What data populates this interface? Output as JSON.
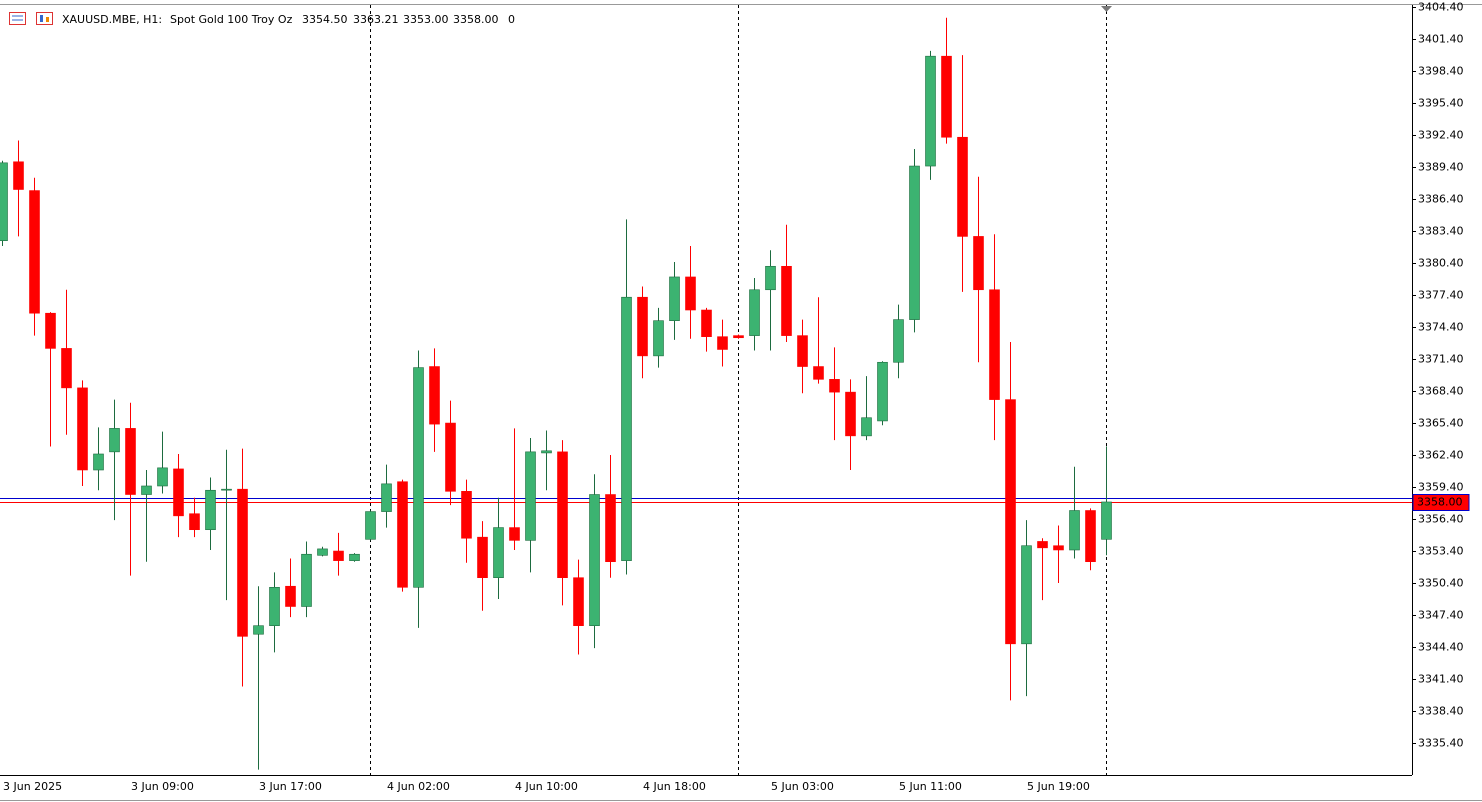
{
  "chart_data": {
    "type": "candlestick",
    "title": "XAUUSD.MBE, H1:",
    "subtitle": "Spot Gold 100 Troy Oz",
    "ohlc_labels": [
      "3354.50",
      "3363.21",
      "3353.00",
      "3358.00"
    ],
    "tick_volume": 0,
    "categories": [
      "3 Jun 2025",
      null,
      null,
      null,
      null,
      null,
      null,
      null,
      "3 Jun 09:00",
      null,
      null,
      null,
      null,
      null,
      null,
      null,
      "3 Jun 17:00",
      null,
      null,
      null,
      null,
      null,
      null,
      null,
      "4 Jun 02:00",
      null,
      null,
      null,
      null,
      null,
      null,
      null,
      "4 Jun 10:00",
      null,
      null,
      null,
      null,
      null,
      null,
      null,
      "4 Jun 18:00",
      null,
      null,
      null,
      null,
      null,
      null,
      null,
      "5 Jun 03:00",
      null,
      null,
      null,
      null,
      null,
      null,
      null,
      "5 Jun 11:00",
      null,
      null,
      null,
      null,
      null,
      null,
      null,
      "5 Jun 19:00",
      null,
      null,
      null,
      null,
      null
    ],
    "open": [
      3382.5,
      3389.9,
      3387.2,
      3375.7,
      3372.4,
      3368.7,
      3361.0,
      3362.7,
      3364.9,
      3358.7,
      3359.5,
      3361.1,
      3356.9,
      3355.4,
      3359.2,
      3359.2,
      3345.6,
      3346.4,
      3350.1,
      3348.2,
      3353.0,
      3353.4,
      3352.5,
      3354.5,
      3357.1,
      3359.9,
      3350.0,
      3370.7,
      3365.4,
      3359.0,
      3354.7,
      3350.9,
      3355.6,
      3354.4,
      3362.6,
      3362.7,
      3350.9,
      3346.4,
      3358.7,
      3352.5,
      3377.2,
      3371.7,
      3375.0,
      3379.1,
      3376.0,
      3373.5,
      3373.6,
      3373.6,
      3377.9,
      3380.1,
      3373.6,
      3370.7,
      3369.5,
      3368.3,
      3364.2,
      3365.6,
      3371.1,
      3375.1,
      3389.5,
      3399.8,
      3392.2,
      3382.9,
      3377.9,
      3367.6,
      3344.7,
      3354.3,
      3353.9,
      3353.5,
      3357.2,
      3354.5
    ],
    "high": [
      3390.0,
      3391.9,
      3388.4,
      3375.8,
      3377.9,
      3369.4,
      3365.0,
      3367.6,
      3367.3,
      3361.0,
      3364.6,
      3362.5,
      3358.4,
      3360.3,
      3362.9,
      3363.0,
      3350.1,
      3351.4,
      3352.7,
      3354.3,
      3353.8,
      3355.1,
      3353.2,
      3357.2,
      3361.5,
      3360.1,
      3372.2,
      3372.4,
      3367.5,
      3360.1,
      3356.2,
      3358.4,
      3364.9,
      3364.0,
      3364.7,
      3363.8,
      3352.6,
      3360.6,
      3362.4,
      3384.5,
      3378.2,
      3376.2,
      3380.5,
      3382.0,
      3376.2,
      3375.1,
      3373.7,
      3379.0,
      3381.6,
      3384.0,
      3375.1,
      3377.2,
      3372.5,
      3369.5,
      3369.8,
      3371.2,
      3376.5,
      3391.1,
      3400.3,
      3403.4,
      3399.9,
      3388.5,
      3383.1,
      3373.0,
      3356.3,
      3354.6,
      3355.8,
      3361.3,
      3357.4,
      3363.21
    ],
    "low": [
      3382.0,
      3382.9,
      3373.6,
      3363.2,
      3364.3,
      3359.5,
      3359.1,
      3356.3,
      3351.1,
      3352.4,
      3358.8,
      3354.7,
      3354.7,
      3353.5,
      3348.8,
      3340.7,
      3332.9,
      3343.9,
      3347.2,
      3347.2,
      3352.9,
      3351.1,
      3352.4,
      3354.4,
      3355.6,
      3349.6,
      3346.2,
      3362.7,
      3357.7,
      3352.3,
      3347.8,
      3348.9,
      3353.5,
      3351.4,
      3359.1,
      3348.3,
      3343.7,
      3344.3,
      3350.9,
      3351.2,
      3369.6,
      3370.6,
      3373.2,
      3373.3,
      3372.1,
      3370.7,
      3373.3,
      3372.2,
      3372.2,
      3373.0,
      3368.2,
      3369.1,
      3363.8,
      3361.0,
      3363.8,
      3365.2,
      3369.6,
      3373.9,
      3388.2,
      3391.6,
      3377.7,
      3371.1,
      3363.8,
      3339.4,
      3339.8,
      3348.8,
      3350.4,
      3352.7,
      3351.6,
      3353.0
    ],
    "close": [
      3389.8,
      3387.3,
      3375.7,
      3372.4,
      3368.7,
      3361.0,
      3362.5,
      3364.9,
      3358.7,
      3359.5,
      3361.2,
      3356.7,
      3355.4,
      3359.1,
      3359.2,
      3345.4,
      3346.4,
      3350.0,
      3348.2,
      3353.1,
      3353.6,
      3352.5,
      3353.1,
      3357.1,
      3359.7,
      3350.0,
      3370.6,
      3365.3,
      3359.0,
      3354.6,
      3350.9,
      3355.6,
      3354.4,
      3362.7,
      3362.8,
      3350.9,
      3346.4,
      3358.7,
      3352.4,
      3377.2,
      3371.7,
      3375.0,
      3379.1,
      3376.0,
      3373.5,
      3372.3,
      3373.4,
      3377.9,
      3380.1,
      3373.6,
      3370.7,
      3369.5,
      3368.3,
      3364.2,
      3365.9,
      3371.1,
      3375.1,
      3389.5,
      3399.8,
      3392.2,
      3382.9,
      3377.9,
      3367.6,
      3344.7,
      3353.9,
      3353.7,
      3353.5,
      3357.2,
      3352.4,
      3358.0
    ],
    "up_color": "#3cb371",
    "down_color": "#ff0000",
    "ylim": [
      3332.4,
      3404.6
    ],
    "yticks": [
      {
        "value": 3335.4,
        "label": "3335.40"
      },
      {
        "value": 3338.4,
        "label": "3338.40"
      },
      {
        "value": 3341.4,
        "label": "3341.40"
      },
      {
        "value": 3344.4,
        "label": "3344.40"
      },
      {
        "value": 3347.4,
        "label": "3347.40"
      },
      {
        "value": 3350.4,
        "label": "3350.40"
      },
      {
        "value": 3353.4,
        "label": "3353.40"
      },
      {
        "value": 3356.4,
        "label": "3356.40"
      },
      {
        "value": 3359.4,
        "label": "3359.40"
      },
      {
        "value": 3362.4,
        "label": "3362.40"
      },
      {
        "value": 3365.4,
        "label": "3365.40"
      },
      {
        "value": 3368.4,
        "label": "3368.40"
      },
      {
        "value": 3371.4,
        "label": "3371.40"
      },
      {
        "value": 3374.4,
        "label": "3374.40"
      },
      {
        "value": 3377.4,
        "label": "3377.40"
      },
      {
        "value": 3380.4,
        "label": "3380.40"
      },
      {
        "value": 3383.4,
        "label": "3383.40"
      },
      {
        "value": 3386.4,
        "label": "3386.40"
      },
      {
        "value": 3389.4,
        "label": "3389.40"
      },
      {
        "value": 3392.4,
        "label": "3392.40"
      },
      {
        "value": 3395.4,
        "label": "3395.40"
      },
      {
        "value": 3398.4,
        "label": "3398.40"
      },
      {
        "value": 3401.4,
        "label": "3401.40"
      },
      {
        "value": 3404.4,
        "label": "3404.40"
      }
    ],
    "bid_line": {
      "value": 3358.0,
      "label": "3358.00",
      "color": "#ff0000"
    },
    "ask_line": {
      "value": 3358.37,
      "color": "#0000cd"
    },
    "grid": false
  }
}
